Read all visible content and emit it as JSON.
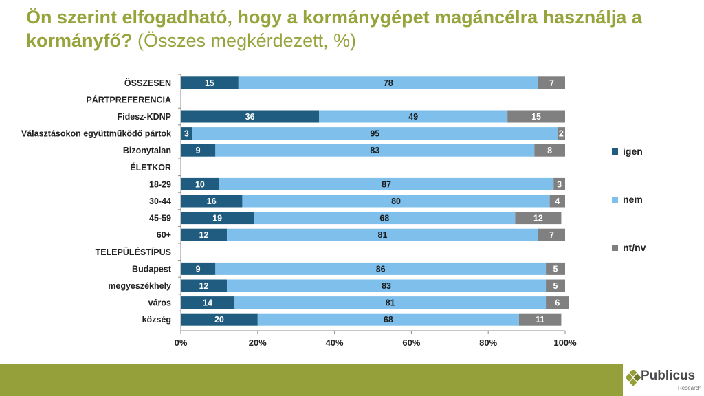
{
  "title": {
    "bold": "Ön szerint elfogadható, hogy a kormánygépet magáncélra használja a kormányfő?",
    "normal": "(Összes megkérdezett, %)"
  },
  "logo": {
    "name": "Publicus",
    "sub": "Research"
  },
  "colors": {
    "igen": "#1f5c80",
    "nem": "#7fbfec",
    "ntnv": "#808080",
    "title": "#97a33b",
    "footer": "#95a03a"
  },
  "chart_data": {
    "type": "bar",
    "orientation": "horizontal-stacked-100",
    "categories": [
      "ÖSSZESEN",
      "PÁRTPREFERENCIA",
      "Fidesz-KDNP",
      "Választásokon együttműködő pártok",
      "Bizonytalan",
      "ÉLETKOR",
      "18-29",
      "30-44",
      "45-59",
      "60+",
      "TELEPÜLÉSTÍPUS",
      "Budapest",
      "megyeszékhely",
      "város",
      "község"
    ],
    "series": [
      {
        "name": "igen",
        "values": [
          15,
          null,
          36,
          3,
          9,
          null,
          10,
          16,
          19,
          12,
          null,
          9,
          12,
          14,
          20
        ]
      },
      {
        "name": "nem",
        "values": [
          78,
          null,
          49,
          95,
          83,
          null,
          87,
          80,
          68,
          81,
          null,
          86,
          83,
          81,
          68
        ]
      },
      {
        "name": "nt/nv",
        "values": [
          7,
          null,
          15,
          2,
          8,
          null,
          3,
          4,
          12,
          7,
          null,
          5,
          5,
          6,
          11
        ]
      }
    ],
    "xticks": [
      "0%",
      "20%",
      "40%",
      "60%",
      "80%",
      "100%"
    ],
    "xlim": [
      0,
      100
    ],
    "legend": [
      "igen",
      "nem",
      "nt/nv"
    ],
    "legend_position": "right"
  }
}
